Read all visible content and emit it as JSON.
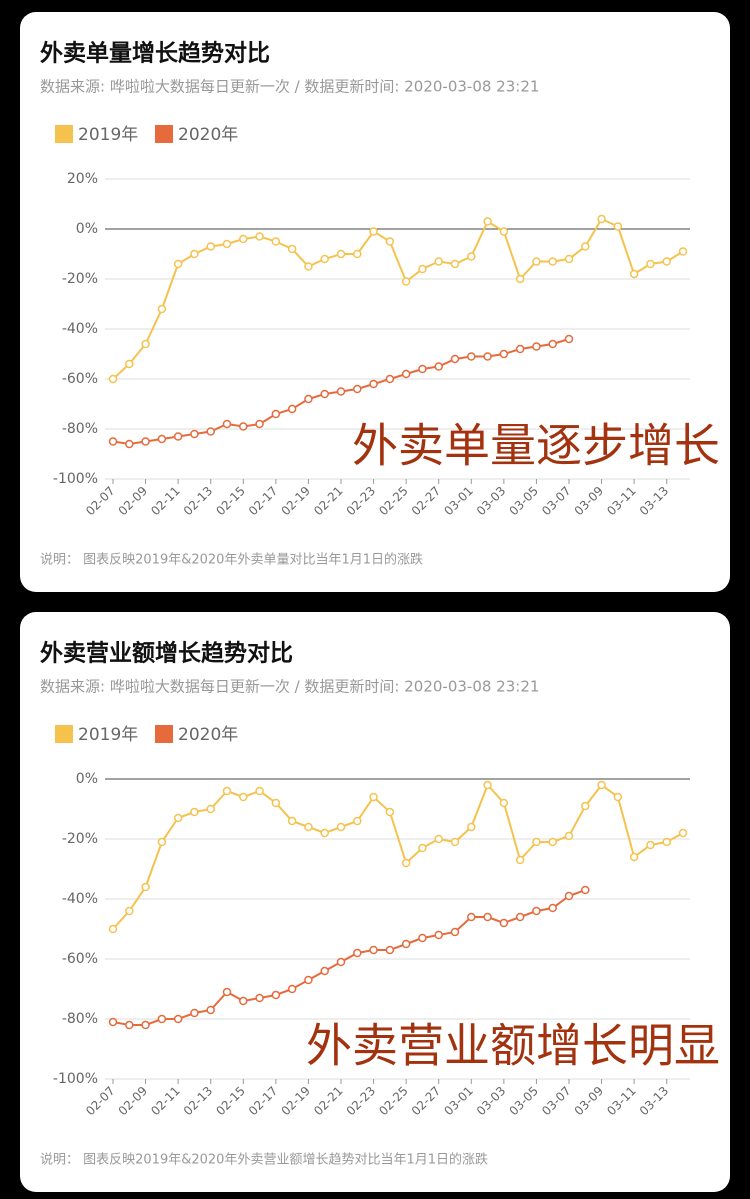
{
  "chart_data": [
    {
      "type": "line",
      "title": "外卖单量增长趋势对比",
      "subtitle": "数据来源: 哗啦啦大数据每日更新一次 / 数据更新时间: 2020-03-08 23:21",
      "annotation": "外卖单量逐步增长",
      "note": "说明： 图表反映2019年&2020年外卖单量对比当年1月1日的涨跌",
      "categories": [
        "02-07",
        null,
        "02-09",
        null,
        "02-11",
        null,
        "02-13",
        null,
        "02-15",
        null,
        "02-17",
        null,
        "02-19",
        null,
        "02-21",
        null,
        "02-23",
        null,
        "02-25",
        null,
        "02-27",
        null,
        "03-01",
        null,
        "03-03",
        null,
        "03-05",
        null,
        "03-07",
        null,
        "03-09",
        null,
        "03-11",
        null,
        "03-13",
        null
      ],
      "series": [
        {
          "name": "2019年",
          "color": "#f5c24e",
          "values": [
            -60,
            -54,
            -46,
            -32,
            -14,
            -10,
            -7,
            -6,
            -4,
            -3,
            -5,
            -8,
            -15,
            -12,
            -10,
            -10,
            -1,
            -5,
            -21,
            -16,
            -13,
            -14,
            -11,
            3,
            -1,
            -20,
            -13,
            -13,
            -12,
            -7,
            4,
            1,
            -18,
            -14,
            -13,
            -9
          ]
        },
        {
          "name": "2020年",
          "color": "#e66a3c",
          "values": [
            -85,
            -86,
            -85,
            -84,
            -83,
            -82,
            -81,
            -78,
            -79,
            -78,
            -74,
            -72,
            -68,
            -66,
            -65,
            -64,
            -62,
            -60,
            -58,
            -56,
            -55,
            -52,
            -51,
            -51,
            -50,
            -48,
            -47,
            -46,
            -44,
            null,
            null,
            null,
            null,
            null,
            null,
            null
          ]
        }
      ],
      "ylim": [
        -100,
        20
      ],
      "yticks": [
        {
          "value": -100,
          "label": "-100%"
        },
        {
          "value": -80,
          "label": "-80%"
        },
        {
          "value": -60,
          "label": "-60%"
        },
        {
          "value": -40,
          "label": "-40%"
        },
        {
          "value": -20,
          "label": "-20%"
        },
        {
          "value": 0,
          "label": "0%"
        },
        {
          "value": 20,
          "label": "20%"
        }
      ],
      "grid": true
    },
    {
      "type": "line",
      "title": "外卖营业额增长趋势对比",
      "subtitle": "数据来源: 哗啦啦大数据每日更新一次 / 数据更新时间: 2020-03-08 23:21",
      "annotation": "外卖营业额增长明显",
      "note": "说明： 图表反映2019年&2020年外卖营业额增长趋势对比当年1月1日的涨跌",
      "categories": [
        "02-07",
        null,
        "02-09",
        null,
        "02-11",
        null,
        "02-13",
        null,
        "02-15",
        null,
        "02-17",
        null,
        "02-19",
        null,
        "02-21",
        null,
        "02-23",
        null,
        "02-25",
        null,
        "02-27",
        null,
        "03-01",
        null,
        "03-03",
        null,
        "03-05",
        null,
        "03-07",
        null,
        "03-09",
        null,
        "03-11",
        null,
        "03-13",
        null
      ],
      "series": [
        {
          "name": "2019年",
          "color": "#f5c24e",
          "values": [
            -50,
            -44,
            -36,
            -21,
            -13,
            -11,
            -10,
            -4,
            -6,
            -4,
            -8,
            -14,
            -16,
            -18,
            -16,
            -14,
            -6,
            -11,
            -28,
            -23,
            -20,
            -21,
            -16,
            -2,
            -8,
            -27,
            -21,
            -21,
            -19,
            -9,
            -2,
            -6,
            -26,
            -22,
            -21,
            -18
          ]
        },
        {
          "name": "2020年",
          "color": "#e66a3c",
          "values": [
            -81,
            -82,
            -82,
            -80,
            -80,
            -78,
            -77,
            -71,
            -74,
            -73,
            -72,
            -70,
            -67,
            -64,
            -61,
            -58,
            -57,
            -57,
            -55,
            -53,
            -52,
            -51,
            -46,
            -46,
            -48,
            -46,
            -44,
            -43,
            -39,
            -37,
            null,
            null,
            null,
            null,
            null,
            null
          ]
        }
      ],
      "ylim": [
        -100,
        0
      ],
      "yticks": [
        {
          "value": -100,
          "label": "-100%"
        },
        {
          "value": -80,
          "label": "-80%"
        },
        {
          "value": -60,
          "label": "-60%"
        },
        {
          "value": -40,
          "label": "-40%"
        },
        {
          "value": -20,
          "label": "-20%"
        },
        {
          "value": 0,
          "label": "0%"
        }
      ],
      "grid": true
    }
  ]
}
